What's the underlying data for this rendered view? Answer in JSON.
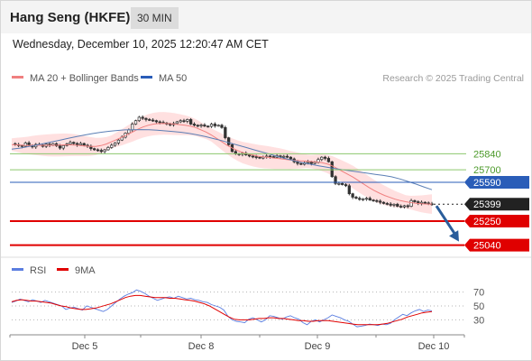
{
  "header": {
    "title": "Hang Seng (HKFE)",
    "timeframe": "30 MIN"
  },
  "datetime": "Wednesday, December 10, 2025 12:20:47 AM CET",
  "legend": {
    "ma20": "MA 20 + Bollinger Bands",
    "ma50": "MA 50",
    "source": "Research © 2025 Trading Central"
  },
  "colors": {
    "candle": "#333333",
    "ma20": "#f08080",
    "band": "#ffd6d6",
    "ma50": "#5b7fb5",
    "resistance": "#8cc86e",
    "pivot": "#2a5db8",
    "support": "#e00000",
    "price_tag": "#222222",
    "arrow": "#2a5d9b",
    "rsi": "#5b7ee0",
    "rsi_ma": "#e00000"
  },
  "chart_data": {
    "type": "candlestick",
    "price_range": [
      24950,
      26420
    ],
    "levels": [
      {
        "label": "25840",
        "value": 25840,
        "kind": "resistance"
      },
      {
        "label": "25700",
        "value": 25700,
        "kind": "resistance"
      },
      {
        "label": "25590",
        "value": 25590,
        "kind": "pivot"
      },
      {
        "label": "25399",
        "value": 25399,
        "kind": "last-price"
      },
      {
        "label": "25250",
        "value": 25250,
        "kind": "support"
      },
      {
        "label": "25040",
        "value": 25040,
        "kind": "support"
      }
    ],
    "projection": {
      "from": 25399,
      "to": 25040
    },
    "x_ticks": [
      "Dec 5",
      "Dec 8",
      "Dec 9",
      "Dec 10"
    ],
    "price_series": [
      25928,
      25920,
      25912,
      25905,
      25935,
      25915,
      25900,
      25922,
      25918,
      25905,
      25925,
      25915,
      25928,
      25910,
      25890,
      25912,
      25925,
      25940,
      25930,
      25918,
      25930,
      25915,
      25905,
      25885,
      25875,
      25870,
      25860,
      25875,
      25895,
      25915,
      25935,
      25960,
      25985,
      26020,
      26050,
      26100,
      26130,
      26160,
      26150,
      26140,
      26135,
      26130,
      26120,
      26115,
      26110,
      26100,
      26095,
      26105,
      26120,
      26130,
      26125,
      26140,
      26100,
      26090,
      26085,
      26092,
      26082,
      26080,
      26100,
      26085,
      26090,
      26070,
      25980,
      25920,
      25860,
      25840,
      25835,
      25845,
      25830,
      25820,
      25815,
      25810,
      25802,
      25812,
      25820,
      25815,
      25808,
      25822,
      25812,
      25818,
      25810,
      25795,
      25770,
      25755,
      25748,
      25760,
      25770,
      25755,
      25765,
      25790,
      25810,
      25800,
      25770,
      25640,
      25580,
      25580,
      25570,
      25560,
      25490,
      25460,
      25450,
      25440,
      25445,
      25450,
      25435,
      25430,
      25425,
      25415,
      25405,
      25400,
      25390,
      25398,
      25380,
      25375,
      25385,
      25380,
      25430,
      25420,
      25405,
      25415,
      25410,
      25402,
      25399
    ],
    "series": [
      {
        "name": "MA 20",
        "values": [
          25920,
          25918,
          25915,
          25913,
          25914,
          25915,
          25914,
          25914,
          25915,
          25916,
          25918,
          25918,
          25916,
          25912,
          25908,
          25904,
          25904,
          25912,
          25925,
          25945,
          25965,
          25985,
          26008,
          26030,
          26055,
          26075,
          26090,
          26100,
          26105,
          26106,
          26104,
          26100,
          26095,
          26090,
          26082,
          26070,
          26050,
          26030,
          26005,
          25975,
          25945,
          25915,
          25890,
          25868,
          25850,
          25838,
          25828,
          25818,
          25812,
          25808,
          25802,
          25798,
          25792,
          25786,
          25782,
          25778,
          25776,
          25772,
          25768,
          25762,
          25752,
          25735,
          25710,
          25685,
          25660,
          25635,
          25605,
          25575,
          25545,
          25518,
          25495,
          25475,
          25458,
          25442,
          25430,
          25420,
          25412,
          25406,
          25402,
          25400,
          25400
        ]
      },
      {
        "name": "MA 50",
        "values": [
          25880,
          25890,
          25902,
          25915,
          25930,
          25945,
          25960,
          25975,
          25990,
          26004,
          26017,
          26028,
          26037,
          26044,
          26049,
          26051,
          26052,
          26050,
          26046,
          26041,
          26035,
          26028,
          26018,
          26005,
          25990,
          25973,
          25955,
          25935,
          25915,
          25895,
          25875,
          25855,
          25835,
          25815,
          25796,
          25778,
          25762,
          25748,
          25735,
          25722,
          25710,
          25700,
          25690,
          25680,
          25670,
          25660,
          25650,
          25638,
          25620,
          25598,
          25575,
          25550,
          25525
        ]
      }
    ],
    "rsi": {
      "axis_labels": [
        "70",
        "50",
        "30"
      ],
      "range": [
        15,
        85
      ],
      "series": [
        {
          "name": "RSI",
          "values": [
            55,
            57,
            60,
            58,
            56,
            59,
            57,
            55,
            58,
            56,
            54,
            52,
            50,
            45,
            47,
            48,
            46,
            44,
            50,
            48,
            46,
            44,
            42,
            45,
            50,
            55,
            60,
            64,
            67,
            69,
            73,
            71,
            68,
            64,
            61,
            58,
            60,
            62,
            63,
            61,
            64,
            62,
            60,
            61,
            59,
            58,
            56,
            55,
            52,
            50,
            48,
            44,
            35,
            30,
            28,
            27,
            26,
            31,
            33,
            30,
            27,
            30,
            36,
            35,
            33,
            31,
            34,
            36,
            33,
            31,
            26,
            23,
            28,
            30,
            27,
            30,
            33,
            37,
            35,
            33,
            30,
            28,
            24,
            20,
            21,
            22,
            24,
            23,
            22,
            24,
            23,
            25,
            30,
            34,
            38,
            36,
            40,
            43,
            45,
            42,
            44,
            43
          ]
        },
        {
          "name": "9MA",
          "values": [
            56,
            58,
            59,
            58,
            57,
            57,
            56,
            55,
            54,
            52,
            50,
            49,
            47,
            46,
            45,
            45,
            46,
            47,
            49,
            51,
            53,
            56,
            59,
            62,
            64,
            65,
            65,
            64,
            63,
            62,
            62,
            62,
            61,
            61,
            60,
            59,
            58,
            57,
            55,
            53,
            50,
            46,
            42,
            38,
            34,
            31,
            30,
            30,
            30,
            31,
            32,
            32,
            33,
            33,
            32,
            32,
            31,
            30,
            29,
            29,
            28,
            28,
            29,
            29,
            29,
            28,
            27,
            26,
            25,
            24,
            23,
            23,
            23,
            23,
            23,
            24,
            25,
            27,
            29,
            31,
            34,
            36,
            38,
            40,
            41,
            42
          ]
        }
      ]
    }
  }
}
